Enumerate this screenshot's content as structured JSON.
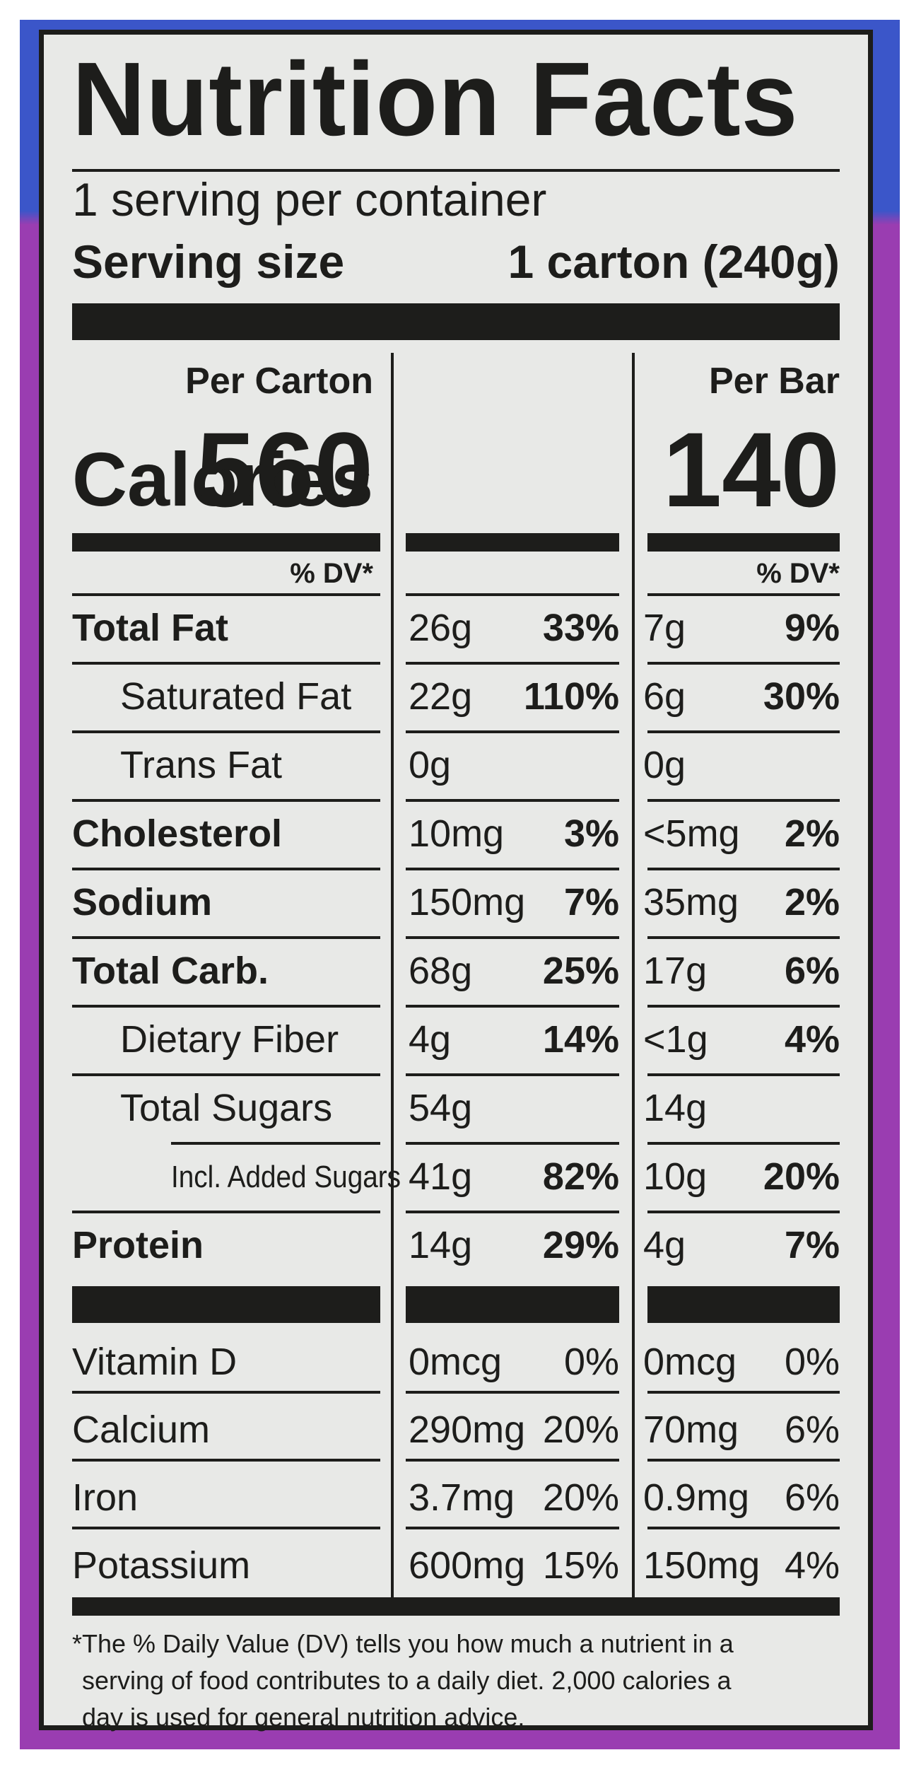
{
  "label": {
    "title": "Nutrition Facts",
    "servings_per_container": "1 serving per container",
    "serving_size_label": "Serving size",
    "serving_size_value": "1 carton (240g)",
    "calories_label": "Calories",
    "columns": [
      {
        "header": "Per Carton",
        "calories": "560",
        "dv_header": "% DV*"
      },
      {
        "header": "Per Bar",
        "calories": "140",
        "dv_header": "% DV*"
      }
    ],
    "nutrients": [
      {
        "name": "Total Fat",
        "bold": true,
        "indent": 0,
        "c1_amount": "26g",
        "c1_dv": "33%",
        "c2_amount": "7g",
        "c2_dv": "9%",
        "dv_bold": true
      },
      {
        "name": "Saturated Fat",
        "bold": false,
        "indent": 1,
        "c1_amount": "22g",
        "c1_dv": "110%",
        "c2_amount": "6g",
        "c2_dv": "30%",
        "dv_bold": true
      },
      {
        "name": "Trans Fat",
        "bold": false,
        "indent": 1,
        "c1_amount": "0g",
        "c1_dv": "",
        "c2_amount": "0g",
        "c2_dv": "",
        "dv_bold": true
      },
      {
        "name": "Cholesterol",
        "bold": true,
        "indent": 0,
        "c1_amount": "10mg",
        "c1_dv": "3%",
        "c2_amount": "<5mg",
        "c2_dv": "2%",
        "dv_bold": true
      },
      {
        "name": "Sodium",
        "bold": true,
        "indent": 0,
        "c1_amount": "150mg",
        "c1_dv": "7%",
        "c2_amount": "35mg",
        "c2_dv": "2%",
        "dv_bold": true
      },
      {
        "name": "Total Carb.",
        "bold": true,
        "indent": 0,
        "c1_amount": "68g",
        "c1_dv": "25%",
        "c2_amount": "17g",
        "c2_dv": "6%",
        "dv_bold": true
      },
      {
        "name": "Dietary Fiber",
        "bold": false,
        "indent": 1,
        "c1_amount": "4g",
        "c1_dv": "14%",
        "c2_amount": "<1g",
        "c2_dv": "4%",
        "dv_bold": true
      },
      {
        "name": "Total Sugars",
        "bold": false,
        "indent": 1,
        "c1_amount": "54g",
        "c1_dv": "",
        "c2_amount": "14g",
        "c2_dv": "",
        "dv_bold": true
      },
      {
        "name": "Incl. Added Sugars",
        "bold": false,
        "indent": 2,
        "c1_amount": "41g",
        "c1_dv": "82%",
        "c2_amount": "10g",
        "c2_dv": "20%",
        "dv_bold": true
      },
      {
        "name": "Protein",
        "bold": true,
        "indent": 0,
        "c1_amount": "14g",
        "c1_dv": "29%",
        "c2_amount": "4g",
        "c2_dv": "7%",
        "dv_bold": true
      }
    ],
    "vitamins": [
      {
        "name": "Vitamin D",
        "c1_amount": "0mcg",
        "c1_dv": "0%",
        "c2_amount": "0mcg",
        "c2_dv": "0%"
      },
      {
        "name": "Calcium",
        "c1_amount": "290mg",
        "c1_dv": "20%",
        "c2_amount": "70mg",
        "c2_dv": "6%"
      },
      {
        "name": "Iron",
        "c1_amount": "3.7mg",
        "c1_dv": "20%",
        "c2_amount": "0.9mg",
        "c2_dv": "6%"
      },
      {
        "name": "Potassium",
        "c1_amount": "600mg",
        "c1_dv": "15%",
        "c2_amount": "150mg",
        "c2_dv": "4%"
      }
    ],
    "footnote": [
      "*The % Daily Value (DV) tells you how much a nutrient in a",
      "serving of food contributes to a daily diet. 2,000 calories a",
      "day is used for general nutrition advice."
    ]
  },
  "colors": {
    "ink": "#1d1d1b",
    "panel": "#e8e9e7",
    "package_blue": "#3b56c9",
    "package_purple": "#9a3db1"
  }
}
